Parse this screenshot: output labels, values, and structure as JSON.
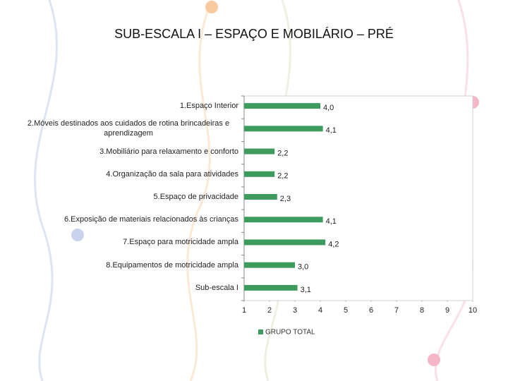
{
  "chart_data": {
    "type": "bar",
    "orientation": "horizontal",
    "title": "SUB-ESCALA I – ESPAÇO E MOBILÁRIO – PRÉ",
    "categories": [
      "1.Espaço Interior",
      "2.Móveis destinados aos cuidados de rotina brincadeiras e aprendizagem",
      "3.Mobiliário para relaxamento e conforto",
      "4.Organização da sala para atividades",
      "5.Espaço de privacidade",
      "6.Exposição de materiais relacionados às crianças",
      "7.Espaço para motricidade ampla",
      "8.Equipamentos de motricidade ampla",
      "Sub-escala I"
    ],
    "series": [
      {
        "name": "GRUPO TOTAL",
        "color": "#3d9b5e",
        "values": [
          4.0,
          4.1,
          2.2,
          2.2,
          2.3,
          4.1,
          4.2,
          3.0,
          3.1
        ],
        "value_labels": [
          "4,0",
          "4,1",
          "2,2",
          "2,2",
          "2,3",
          "4,1",
          "4,2",
          "3,0",
          "3,1"
        ]
      }
    ],
    "xlim": [
      1,
      10
    ],
    "xticks": [
      1,
      2,
      3,
      4,
      5,
      6,
      7,
      8,
      9,
      10
    ],
    "grid": false
  }
}
